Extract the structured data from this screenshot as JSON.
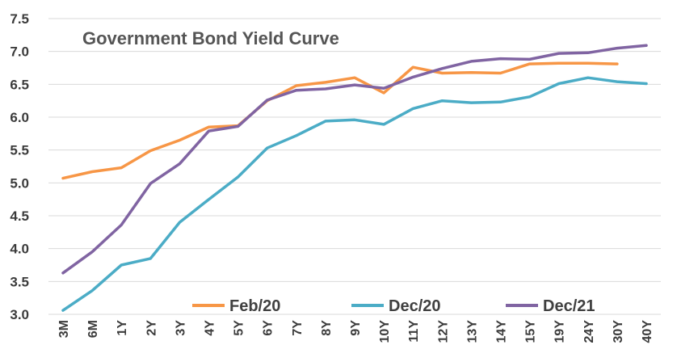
{
  "chart_data": {
    "type": "line",
    "title": "Government Bond Yield Curve",
    "xlabel": "",
    "ylabel": "",
    "ylim": [
      3.0,
      7.5
    ],
    "yticks": [
      "3.0",
      "3.5",
      "4.0",
      "4.5",
      "5.0",
      "5.5",
      "6.0",
      "6.5",
      "7.0",
      "7.5"
    ],
    "grid": true,
    "legend_position": "bottom-inside",
    "categories": [
      "3M",
      "6M",
      "1Y",
      "2Y",
      "3Y",
      "4Y",
      "5Y",
      "6Y",
      "7Y",
      "8Y",
      "9Y",
      "10Y",
      "11Y",
      "12Y",
      "13Y",
      "14Y",
      "15Y",
      "19Y",
      "24Y",
      "30Y",
      "40Y"
    ],
    "series": [
      {
        "name": "Feb/20",
        "color": "#f79646",
        "values": [
          5.07,
          5.17,
          5.23,
          5.49,
          5.65,
          5.85,
          5.87,
          6.25,
          6.48,
          6.53,
          6.6,
          6.37,
          6.76,
          6.67,
          6.68,
          6.67,
          6.81,
          6.82,
          6.82,
          6.81,
          null
        ]
      },
      {
        "name": "Dec/20",
        "color": "#4bacc6",
        "values": [
          3.06,
          3.36,
          3.75,
          3.85,
          4.4,
          4.75,
          5.09,
          5.53,
          5.72,
          5.94,
          5.96,
          5.89,
          6.13,
          6.25,
          6.22,
          6.23,
          6.31,
          6.51,
          6.6,
          6.54,
          6.51
        ]
      },
      {
        "name": "Dec/21",
        "color": "#8064a2",
        "values": [
          3.63,
          3.95,
          4.36,
          4.99,
          5.29,
          5.79,
          5.86,
          6.26,
          6.41,
          6.43,
          6.49,
          6.44,
          6.61,
          6.74,
          6.85,
          6.89,
          6.88,
          6.97,
          6.98,
          7.05,
          7.09
        ]
      }
    ]
  }
}
